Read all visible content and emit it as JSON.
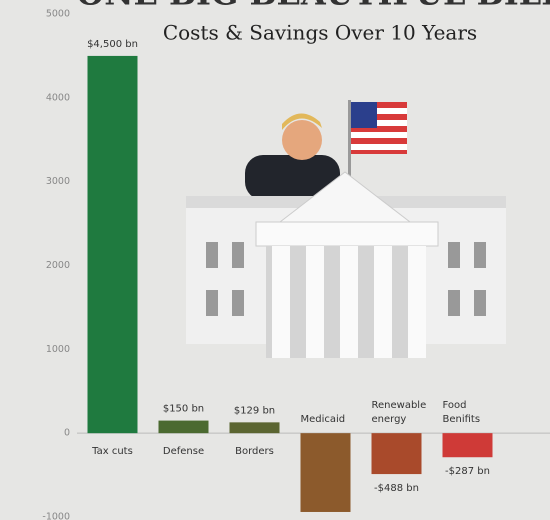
{
  "chart_data": {
    "type": "bar",
    "title": "ONE BIG BEAUTIFUL BILL",
    "subtitle": "Costs & Savings Over 10 Years",
    "categories": [
      "Tax cuts",
      "Defense",
      "Borders",
      "Medicaid",
      "Renewable energy",
      "Food Benifits"
    ],
    "values": [
      4500,
      150,
      129,
      -940,
      -488,
      -287
    ],
    "value_labels": [
      "$4,500 bn",
      "$150 bn",
      "$129 bn",
      null,
      "-$488 bn",
      "-$287 bn"
    ],
    "colors": [
      "#1f7a3f",
      "#4b6a30",
      "#5b6531",
      "#8c5a2c",
      "#a94a2b",
      "#cf3a37"
    ],
    "ylim": [
      -1000,
      5000
    ],
    "yticks": [
      -1000,
      0,
      1000,
      2000,
      3000,
      4000,
      5000
    ]
  }
}
